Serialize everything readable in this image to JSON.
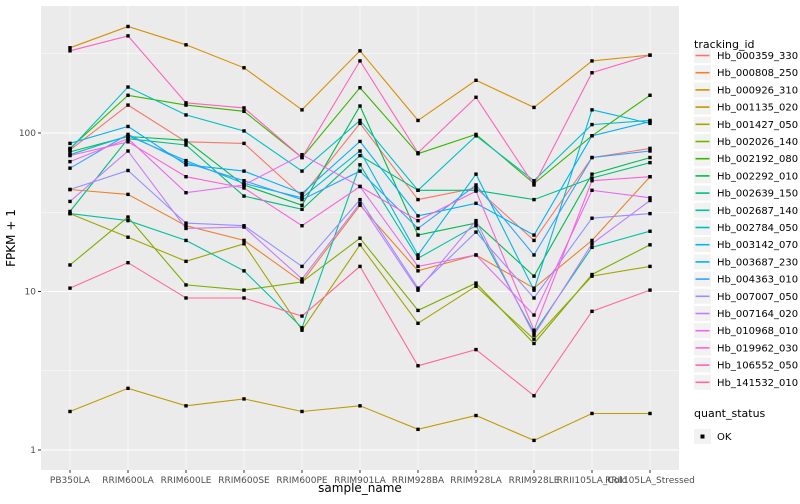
{
  "chart_data": {
    "type": "line",
    "title": "",
    "xlabel": "sample_name",
    "ylabel": "FPKM + 1",
    "y_scale": "log10",
    "y_ticks": [
      1,
      10,
      100
    ],
    "y_minor_ticks": [
      3.162,
      31.62,
      316.2
    ],
    "ylim": [
      1,
      630
    ],
    "grid": "white major+minor on gray panel",
    "legend_position": "right",
    "categories": [
      "PB350LA",
      "RRIM600LA",
      "RRIM600LE",
      "RRIM600SE",
      "RRIM600PE",
      "RRIM901LA",
      "RRIM928BA",
      "RRIM928LA",
      "RRIM928LE",
      "RRII105LA_Cold",
      "RRII105LA_Stressed"
    ],
    "series": [
      {
        "name": "Hb_000359_330",
        "color": "#F8766D",
        "values": [
          78,
          150,
          88,
          86,
          40,
          115,
          38,
          45,
          21,
          70,
          80
        ]
      },
      {
        "name": "Hb_000808_250",
        "color": "#EA8331",
        "values": [
          44,
          41,
          26,
          21,
          11.5,
          35,
          13.5,
          17,
          10.5,
          21,
          53
        ]
      },
      {
        "name": "Hb_000926_310",
        "color": "#D89000",
        "values": [
          345,
          470,
          360,
          258,
          140,
          330,
          120,
          215,
          145,
          285,
          310
        ]
      },
      {
        "name": "Hb_001135_020",
        "color": "#C09B00",
        "values": [
          1.75,
          2.45,
          1.9,
          2.1,
          1.75,
          1.9,
          1.35,
          1.65,
          1.15,
          1.7,
          1.7
        ]
      },
      {
        "name": "Hb_001427_050",
        "color": "#A3A500",
        "values": [
          31,
          22,
          15.5,
          20,
          5.7,
          19.7,
          6.3,
          10.8,
          5,
          12.5,
          14.4
        ]
      },
      {
        "name": "Hb_002026_140",
        "color": "#7CAE00",
        "values": [
          14.7,
          29.5,
          11,
          10.2,
          11.5,
          21.7,
          7.6,
          11.3,
          4.7,
          12.8,
          19.7
        ]
      },
      {
        "name": "Hb_002192_080",
        "color": "#39B600",
        "values": [
          80,
          173,
          150,
          137,
          70,
          193,
          74,
          98,
          48,
          96,
          173
        ]
      },
      {
        "name": "Hb_002292_010",
        "color": "#00BB4E",
        "values": [
          76,
          95,
          90,
          47,
          35,
          148,
          22.7,
          27,
          12.5,
          55,
          70
        ]
      },
      {
        "name": "Hb_002639_150",
        "color": "#00BF7D",
        "values": [
          32,
          92,
          84,
          40,
          33,
          72,
          43.5,
          43.5,
          38,
          52,
          65
        ]
      },
      {
        "name": "Hb_002687_140",
        "color": "#00C1A3",
        "values": [
          31,
          28,
          21,
          13.5,
          5.9,
          63,
          16.2,
          26,
          5.5,
          19,
          24
        ]
      },
      {
        "name": "Hb_002784_050",
        "color": "#00BFC4",
        "values": [
          79,
          195,
          130,
          103,
          57.5,
          120,
          43.5,
          96,
          50,
          113,
          120
        ]
      },
      {
        "name": "Hb_003142_070",
        "color": "#00BAE0",
        "values": [
          73,
          96,
          67,
          48,
          39,
          77,
          17,
          55,
          10.2,
          140,
          115
        ]
      },
      {
        "name": "Hb_003687_230",
        "color": "#00B0F6",
        "values": [
          86,
          110,
          63,
          57.5,
          41.5,
          88.5,
          30,
          36,
          22.7,
          96,
          118
        ]
      },
      {
        "name": "Hb_004363_010",
        "color": "#35A2FF",
        "values": [
          60,
          98,
          65,
          50,
          38,
          57.5,
          25,
          47,
          17,
          70,
          77
        ]
      },
      {
        "name": "Hb_007007_050",
        "color": "#9590FF",
        "values": [
          44,
          58,
          27,
          26,
          14.4,
          38,
          10.5,
          23.7,
          9.1,
          29,
          31
        ]
      },
      {
        "name": "Hb_007164_020",
        "color": "#C77CFF",
        "values": [
          37,
          77,
          25,
          25.5,
          12,
          36,
          10.2,
          28,
          5.3,
          20,
          37.5
        ]
      },
      {
        "name": "Hb_010968_010",
        "color": "#E76BF3",
        "values": [
          66,
          92,
          42,
          47,
          73,
          46,
          14.4,
          17,
          7.1,
          43.5,
          39
        ]
      },
      {
        "name": "Hb_019962_030",
        "color": "#FA62DB",
        "values": [
          72,
          88,
          53,
          45,
          26,
          46,
          28,
          43,
          5.7,
          50,
          53
        ]
      },
      {
        "name": "Hb_106552_050",
        "color": "#FF62BC",
        "values": [
          330,
          410,
          155,
          144,
          70,
          285,
          75,
          168,
          47,
          240,
          310
        ]
      },
      {
        "name": "Hb_141532_010",
        "color": "#FF6A98",
        "values": [
          10.5,
          15.2,
          9.1,
          9.1,
          7,
          14.4,
          3.4,
          4.3,
          2.2,
          7.5,
          10.2
        ]
      }
    ],
    "legend": {
      "color_title": "tracking_id",
      "shape_title": "quant_status",
      "shape_items": [
        {
          "label": "OK",
          "marker": "black-square"
        }
      ]
    }
  },
  "colors": {
    "panel_bg": "#EBEBEB",
    "grid": "#FFFFFF",
    "tick_mark": "#333333",
    "tick_label": "#4D4D4D",
    "axis_title": "#000000",
    "point": "#000000",
    "legend_key_bg": "#F2F2F2",
    "page_bg": "#FFFFFF"
  }
}
